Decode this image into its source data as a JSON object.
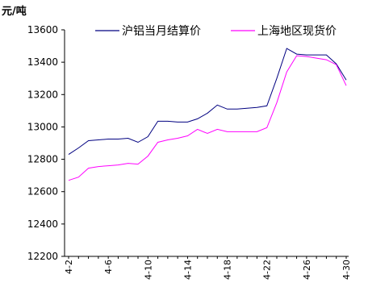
{
  "chart_data": {
    "type": "line",
    "title": "",
    "unit_label": "元/吨",
    "xlabel": "",
    "ylabel": "",
    "ylim": [
      12200,
      13600
    ],
    "yticks": [
      12200,
      12400,
      12600,
      12800,
      13000,
      13200,
      13400,
      13600
    ],
    "x": [
      "4-2",
      "4-3",
      "4-4",
      "4-5",
      "4-6",
      "4-7",
      "4-8",
      "4-9",
      "4-10",
      "4-11",
      "4-12",
      "4-13",
      "4-14",
      "4-15",
      "4-16",
      "4-17",
      "4-18",
      "4-19",
      "4-20",
      "4-21",
      "4-22",
      "4-23",
      "4-24",
      "4-25",
      "4-26",
      "4-27",
      "4-28",
      "4-29",
      "4-30"
    ],
    "xtick_labels": [
      "4-2",
      "4-6",
      "4-10",
      "4-14",
      "4-18",
      "4-22",
      "4-26",
      "4-30"
    ],
    "legend_position": "top",
    "series": [
      {
        "name": "沪铝当月结算价",
        "color": "#000080",
        "values": [
          12830,
          12870,
          12915,
          12920,
          12925,
          12925,
          12930,
          12905,
          12940,
          13035,
          13035,
          13030,
          13030,
          13050,
          13085,
          13135,
          13110,
          13110,
          13115,
          13120,
          13130,
          13300,
          13485,
          13450,
          13445,
          13445,
          13445,
          13390,
          13290
        ]
      },
      {
        "name": "上海地区现货价",
        "color": "#ff00ff",
        "values": [
          12670,
          12690,
          12745,
          12755,
          12760,
          12765,
          12775,
          12770,
          12820,
          12905,
          12920,
          12930,
          12945,
          12985,
          12960,
          12985,
          12970,
          12970,
          12970,
          12970,
          12995,
          13150,
          13340,
          13440,
          13435,
          13425,
          13415,
          13385,
          13255
        ]
      }
    ]
  }
}
